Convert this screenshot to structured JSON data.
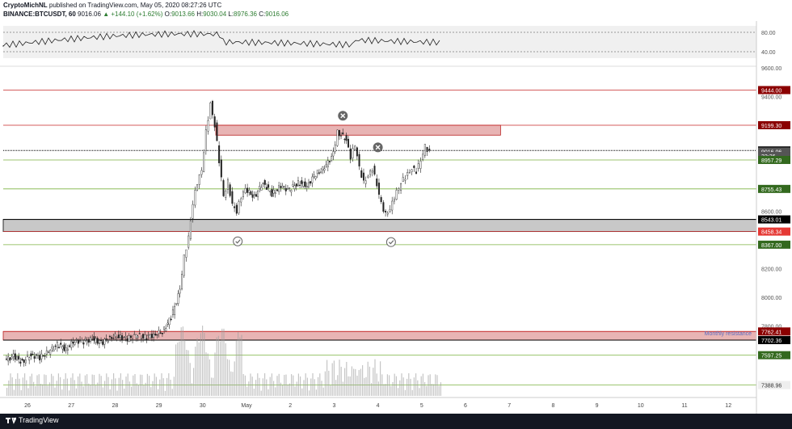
{
  "header": {
    "author": "CryptoMichNL",
    "published": "published on TradingView.com, May 05, 2020 08:27:26 UTC",
    "symbol": "BINANCE:BTCUSDT, 60",
    "price": "9016.06",
    "change": "▲ +144.10 (+1.62%)",
    "o_label": "O:",
    "o_val": "9013.66",
    "h_label": "H:",
    "h_val": "9030.04",
    "l_label": "L:",
    "l_val": "8976.36",
    "c_label": "C:",
    "c_val": "9016.06"
  },
  "footer": {
    "brand": "TradingView"
  },
  "annotations": {
    "monthly_resistance": "Monthly resistance"
  },
  "colors": {
    "candle_up": "#26a69a",
    "candle_down": "#2b2b2b",
    "candle_body_up": "#ffffff",
    "red_line": "#c62828",
    "green_line": "#7cb342",
    "zone_red": "#e8b4b4",
    "zone_grey": "#c8c8c8",
    "label_red": "#b71c1c",
    "label_green": "#33691e",
    "label_black": "#000000"
  },
  "chart_data": {
    "type": "candlestick",
    "title": "",
    "price_axis_ticks": [
      "9600.00",
      "9400.00",
      "8600.00",
      "8200.00",
      "8000.00",
      "7800.00"
    ],
    "rsi_axis_ticks": [
      "80.00",
      "40.00"
    ],
    "ylim": [
      7280,
      9700
    ],
    "rsi_ylim": [
      20,
      100
    ],
    "x_labels": [
      "26",
      "27",
      "28",
      "29",
      "30",
      "May",
      "2",
      "3",
      "4",
      "5",
      "6",
      "7",
      "8",
      "9",
      "10",
      "11",
      "12"
    ],
    "price_levels": [
      {
        "label": "9444.00",
        "value": 9444,
        "color": "red_line",
        "label_bg": "label_red"
      },
      {
        "label": "9199.30",
        "value": 9199.3,
        "color": "red_line",
        "label_bg": "label_red"
      },
      {
        "label": "9023.38",
        "value": 9023.38,
        "color": "dotted",
        "label_bg": "label_black"
      },
      {
        "label": "9016.06",
        "value": 9016.06,
        "color": "none",
        "label_bg": "label_grey"
      },
      {
        "label": "32:36",
        "value": 8985,
        "color": "none",
        "label_bg": "label_grey"
      },
      {
        "label": "8957.29",
        "value": 8957.29,
        "color": "green_line",
        "label_bg": "label_green"
      },
      {
        "label": "8755.43",
        "value": 8755.43,
        "color": "green_line",
        "label_bg": "label_green"
      },
      {
        "label": "8543.01",
        "value": 8543.01,
        "color": "black_line",
        "label_bg": "label_black"
      },
      {
        "label": "8458.34",
        "value": 8458.34,
        "color": "red_line",
        "label_bg": "label_red_bright"
      },
      {
        "label": "8367.00",
        "value": 8367,
        "color": "green_line",
        "label_bg": "label_green"
      },
      {
        "label": "7762.41",
        "value": 7762.41,
        "color": "red_line",
        "label_bg": "label_red"
      },
      {
        "label": "7702.36",
        "value": 7702.36,
        "color": "black_line",
        "label_bg": "label_black"
      },
      {
        "label": "7597.25",
        "value": 7597.25,
        "color": "green_line",
        "label_bg": "label_green"
      },
      {
        "label": "7388.96",
        "value": 7388.96,
        "color": "green_line",
        "label_bg": "label_light"
      }
    ],
    "zones": [
      {
        "name": "resistance-zone",
        "from": 9130,
        "to": 9199.3,
        "x_start_day": 30.3,
        "x_end_day": 6.8,
        "fill": "zone_red"
      },
      {
        "name": "support-zone",
        "from": 8458.34,
        "to": 8543.01,
        "x_start_day": 25.5,
        "x_end_day": 13,
        "fill": "zone_grey"
      },
      {
        "name": "monthly-resistance-zone",
        "from": 7702.36,
        "to": 7762.41,
        "x_start_day": 25.5,
        "x_end_day": 13,
        "fill": "zone_red"
      }
    ],
    "markers": [
      {
        "type": "cross",
        "day": 3.2,
        "price": 9265
      },
      {
        "type": "cross",
        "day": 4.0,
        "price": 9045
      },
      {
        "type": "check",
        "day": 30.8,
        "price": 8390
      },
      {
        "type": "check",
        "day": 4.3,
        "price": 8385
      }
    ],
    "close_path": [
      {
        "d": 25.5,
        "p": 7560
      },
      {
        "d": 25.7,
        "p": 7590
      },
      {
        "d": 25.9,
        "p": 7550
      },
      {
        "d": 26.1,
        "p": 7600
      },
      {
        "d": 26.3,
        "p": 7580
      },
      {
        "d": 26.5,
        "p": 7620
      },
      {
        "d": 26.7,
        "p": 7670
      },
      {
        "d": 26.9,
        "p": 7640
      },
      {
        "d": 27.1,
        "p": 7700
      },
      {
        "d": 27.3,
        "p": 7690
      },
      {
        "d": 27.5,
        "p": 7710
      },
      {
        "d": 27.7,
        "p": 7680
      },
      {
        "d": 27.9,
        "p": 7720
      },
      {
        "d": 28.1,
        "p": 7730
      },
      {
        "d": 28.3,
        "p": 7710
      },
      {
        "d": 28.5,
        "p": 7735
      },
      {
        "d": 28.7,
        "p": 7720
      },
      {
        "d": 28.9,
        "p": 7740
      },
      {
        "d": 29.1,
        "p": 7760
      },
      {
        "d": 29.3,
        "p": 7860
      },
      {
        "d": 29.5,
        "p": 8050
      },
      {
        "d": 29.6,
        "p": 8280
      },
      {
        "d": 29.7,
        "p": 8420
      },
      {
        "d": 29.8,
        "p": 8660
      },
      {
        "d": 29.9,
        "p": 8800
      },
      {
        "d": 30.0,
        "p": 8880
      },
      {
        "d": 30.1,
        "p": 9150
      },
      {
        "d": 30.2,
        "p": 9350
      },
      {
        "d": 30.3,
        "p": 9200
      },
      {
        "d": 30.4,
        "p": 8950
      },
      {
        "d": 30.5,
        "p": 8700
      },
      {
        "d": 30.6,
        "p": 8800
      },
      {
        "d": 30.7,
        "p": 8650
      },
      {
        "d": 30.8,
        "p": 8600
      },
      {
        "d": 30.9,
        "p": 8700
      },
      {
        "d": 1.0,
        "p": 8750
      },
      {
        "d": 1.2,
        "p": 8700
      },
      {
        "d": 1.4,
        "p": 8800
      },
      {
        "d": 1.6,
        "p": 8720
      },
      {
        "d": 1.8,
        "p": 8770
      },
      {
        "d": 2.0,
        "p": 8750
      },
      {
        "d": 2.2,
        "p": 8800
      },
      {
        "d": 2.4,
        "p": 8780
      },
      {
        "d": 2.6,
        "p": 8860
      },
      {
        "d": 2.8,
        "p": 8900
      },
      {
        "d": 3.0,
        "p": 9000
      },
      {
        "d": 3.1,
        "p": 9150
      },
      {
        "d": 3.3,
        "p": 9100
      },
      {
        "d": 3.4,
        "p": 8980
      },
      {
        "d": 3.5,
        "p": 9060
      },
      {
        "d": 3.6,
        "p": 8900
      },
      {
        "d": 3.7,
        "p": 8800
      },
      {
        "d": 3.8,
        "p": 8850
      },
      {
        "d": 3.9,
        "p": 8900
      },
      {
        "d": 4.0,
        "p": 8780
      },
      {
        "d": 4.1,
        "p": 8650
      },
      {
        "d": 4.2,
        "p": 8580
      },
      {
        "d": 4.3,
        "p": 8620
      },
      {
        "d": 4.4,
        "p": 8700
      },
      {
        "d": 4.5,
        "p": 8760
      },
      {
        "d": 4.6,
        "p": 8820
      },
      {
        "d": 4.7,
        "p": 8860
      },
      {
        "d": 4.8,
        "p": 8900
      },
      {
        "d": 4.9,
        "p": 8880
      },
      {
        "d": 5.0,
        "p": 8950
      },
      {
        "d": 5.1,
        "p": 9050
      },
      {
        "d": 5.2,
        "p": 9016.06
      }
    ]
  }
}
